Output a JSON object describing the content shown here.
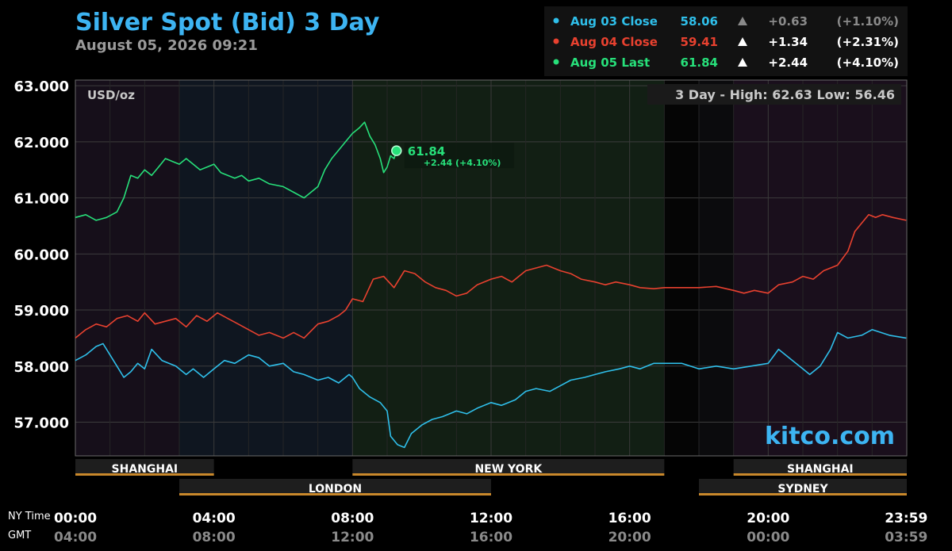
{
  "chart_data": {
    "type": "line",
    "title": "Silver Spot (Bid) 3 Day",
    "subtitle": "August 05, 2026 09:21",
    "unit_label": "USD/oz",
    "watermark": "kitco.com",
    "high_low": "3 Day - High: 62.63  Low: 56.46",
    "ylim": [
      56.4,
      63.1
    ],
    "yticks": [
      "63.000",
      "62.000",
      "61.000",
      "60.000",
      "59.000",
      "58.000",
      "57.000"
    ],
    "ytick_values": [
      63,
      62,
      61,
      60,
      59,
      58,
      57
    ],
    "grid": true,
    "legend_position": "top-right",
    "x_row_labels": {
      "ny": "NY Time",
      "gmt": "GMT"
    },
    "x_ticks": [
      {
        "hour": 0,
        "ny": "00:00",
        "gmt": "04:00"
      },
      {
        "hour": 4,
        "ny": "04:00",
        "gmt": "08:00"
      },
      {
        "hour": 8,
        "ny": "08:00",
        "gmt": "12:00"
      },
      {
        "hour": 12,
        "ny": "12:00",
        "gmt": "16:00"
      },
      {
        "hour": 16,
        "ny": "16:00",
        "gmt": "20:00"
      },
      {
        "hour": 20,
        "ny": "20:00",
        "gmt": "00:00"
      },
      {
        "hour": 23.983,
        "ny": "23:59",
        "gmt": "03:59"
      }
    ],
    "sessions": [
      {
        "name": "SHANGHAI",
        "start": 0,
        "end": 4,
        "row": 1
      },
      {
        "name": "NEW YORK",
        "start": 8,
        "end": 17,
        "row": 1
      },
      {
        "name": "SHANGHAI",
        "start": 19,
        "end": 24,
        "row": 1
      },
      {
        "name": "LONDON",
        "start": 3,
        "end": 12,
        "row": 2
      },
      {
        "name": "SYDNEY",
        "start": 18,
        "end": 24,
        "row": 2
      }
    ],
    "background_bands": [
      {
        "start": 0,
        "end": 3,
        "color": "#160f1a"
      },
      {
        "start": 3,
        "end": 8,
        "color": "#0f1620"
      },
      {
        "start": 8,
        "end": 17,
        "color": "#121f14"
      },
      {
        "start": 17,
        "end": 18,
        "color": "#050505"
      },
      {
        "start": 18,
        "end": 19,
        "color": "#0b0b0d"
      },
      {
        "start": 19,
        "end": 24,
        "color": "#1a0f1c"
      }
    ],
    "series": [
      {
        "name": "Aug 03 Close",
        "color": "#2fbfea",
        "close": "58.06",
        "change": "+0.63",
        "percent": "(+1.10%)",
        "values_color": "#8a8a8a",
        "x": [
          0,
          0.3,
          0.6,
          0.8,
          1.0,
          1.2,
          1.4,
          1.6,
          1.8,
          2.0,
          2.2,
          2.5,
          2.7,
          2.9,
          3.2,
          3.4,
          3.7,
          4.0,
          4.3,
          4.6,
          5.0,
          5.3,
          5.6,
          6.0,
          6.3,
          6.6,
          7.0,
          7.3,
          7.6,
          7.9,
          8.0,
          8.2,
          8.5,
          8.8,
          9.0,
          9.1,
          9.3,
          9.5,
          9.7,
          10.0,
          10.3,
          10.6,
          11.0,
          11.3,
          11.6,
          12.0,
          12.3,
          12.7,
          13.0,
          13.3,
          13.7,
          14.0,
          14.3,
          14.7,
          15.0,
          15.3,
          15.7,
          16.0,
          16.3,
          16.7,
          17.0,
          17.5,
          18.0,
          18.5,
          19.0,
          19.5,
          20.0,
          20.3,
          20.7,
          21.0,
          21.2,
          21.5,
          21.8,
          22.0,
          22.3,
          22.7,
          23.0,
          23.5,
          23.983
        ],
        "values": [
          58.1,
          58.2,
          58.35,
          58.4,
          58.2,
          58.0,
          57.8,
          57.9,
          58.05,
          57.95,
          58.3,
          58.1,
          58.05,
          58.0,
          57.85,
          57.95,
          57.8,
          57.95,
          58.1,
          58.05,
          58.2,
          58.15,
          58.0,
          58.05,
          57.9,
          57.85,
          57.75,
          57.8,
          57.7,
          57.85,
          57.8,
          57.6,
          57.45,
          57.35,
          57.2,
          56.75,
          56.6,
          56.55,
          56.8,
          56.95,
          57.05,
          57.1,
          57.2,
          57.15,
          57.25,
          57.35,
          57.3,
          57.4,
          57.55,
          57.6,
          57.55,
          57.65,
          57.75,
          57.8,
          57.85,
          57.9,
          57.95,
          58.0,
          57.95,
          58.05,
          58.05,
          58.05,
          57.95,
          58.0,
          57.95,
          58.0,
          58.05,
          58.3,
          58.1,
          57.95,
          57.85,
          58.0,
          58.3,
          58.6,
          58.5,
          58.55,
          58.65,
          58.55,
          58.5
        ]
      },
      {
        "name": "Aug 04 Close",
        "color": "#e8412f",
        "close": "59.41",
        "change": "+1.34",
        "percent": "(+2.31%)",
        "values_color": "#ffffff",
        "x": [
          0,
          0.3,
          0.6,
          0.9,
          1.2,
          1.5,
          1.8,
          2.0,
          2.3,
          2.6,
          2.9,
          3.2,
          3.5,
          3.8,
          4.1,
          4.4,
          4.7,
          5.0,
          5.3,
          5.6,
          6.0,
          6.3,
          6.6,
          7.0,
          7.3,
          7.6,
          7.8,
          8.0,
          8.3,
          8.6,
          8.9,
          9.2,
          9.5,
          9.8,
          10.1,
          10.4,
          10.7,
          11.0,
          11.3,
          11.6,
          12.0,
          12.3,
          12.6,
          13.0,
          13.3,
          13.6,
          14.0,
          14.3,
          14.6,
          15.0,
          15.3,
          15.6,
          16.0,
          16.3,
          16.7,
          17.0,
          17.5,
          18.0,
          18.5,
          19.0,
          19.3,
          19.6,
          20.0,
          20.3,
          20.7,
          21.0,
          21.3,
          21.6,
          22.0,
          22.3,
          22.5,
          22.7,
          22.9,
          23.1,
          23.3,
          23.6,
          23.983
        ],
        "values": [
          58.5,
          58.65,
          58.75,
          58.7,
          58.85,
          58.9,
          58.8,
          58.95,
          58.75,
          58.8,
          58.85,
          58.7,
          58.9,
          58.8,
          58.95,
          58.85,
          58.75,
          58.65,
          58.55,
          58.6,
          58.5,
          58.6,
          58.5,
          58.75,
          58.8,
          58.9,
          59.0,
          59.2,
          59.15,
          59.55,
          59.6,
          59.4,
          59.7,
          59.65,
          59.5,
          59.4,
          59.35,
          59.25,
          59.3,
          59.45,
          59.55,
          59.6,
          59.5,
          59.7,
          59.75,
          59.8,
          59.7,
          59.65,
          59.55,
          59.5,
          59.45,
          59.5,
          59.45,
          59.4,
          59.38,
          59.4,
          59.4,
          59.4,
          59.42,
          59.35,
          59.3,
          59.35,
          59.3,
          59.45,
          59.5,
          59.6,
          59.55,
          59.7,
          59.8,
          60.05,
          60.4,
          60.55,
          60.7,
          60.65,
          60.7,
          60.65,
          60.6
        ]
      },
      {
        "name": "Aug 05 Last",
        "color": "#27e07a",
        "close": "61.84",
        "change": "+2.44",
        "percent": "(+4.10%)",
        "values_color": "#ffffff",
        "x": [
          0,
          0.3,
          0.6,
          0.9,
          1.2,
          1.4,
          1.6,
          1.8,
          2.0,
          2.2,
          2.4,
          2.6,
          2.8,
          3.0,
          3.2,
          3.4,
          3.6,
          3.8,
          4.0,
          4.2,
          4.4,
          4.6,
          4.8,
          5.0,
          5.3,
          5.6,
          6.0,
          6.3,
          6.6,
          7.0,
          7.2,
          7.4,
          7.6,
          7.8,
          8.0,
          8.2,
          8.35,
          8.5,
          8.65,
          8.8,
          8.9,
          9.0,
          9.1,
          9.2,
          9.27
        ],
        "values": [
          60.65,
          60.7,
          60.6,
          60.65,
          60.75,
          61.0,
          61.4,
          61.35,
          61.5,
          61.4,
          61.55,
          61.7,
          61.65,
          61.6,
          61.7,
          61.6,
          61.5,
          61.55,
          61.6,
          61.45,
          61.4,
          61.35,
          61.4,
          61.3,
          61.35,
          61.25,
          61.2,
          61.1,
          61.0,
          61.2,
          61.5,
          61.7,
          61.85,
          62.0,
          62.15,
          62.25,
          62.35,
          62.1,
          61.95,
          61.7,
          61.45,
          61.55,
          61.75,
          61.7,
          61.84
        ]
      }
    ],
    "last_point": {
      "value": "61.84",
      "change": "+2.44 (+4.10%)",
      "hour": 9.27
    }
  }
}
